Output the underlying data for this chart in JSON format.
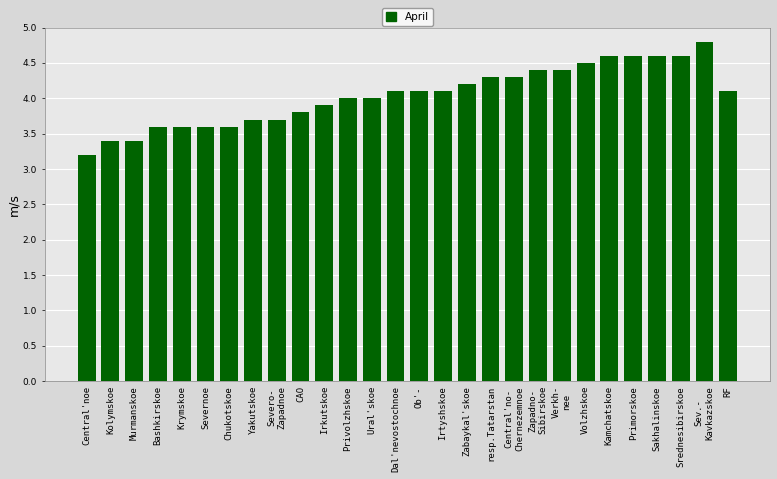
{
  "categories": [
    "Central'noe",
    "Kolymskoe",
    "Murmanskoe",
    "Bashkirskoe",
    "Krymskoe",
    "Severnoe",
    "Chukotskoe",
    "Yakutskoe",
    "Severo-\nZapadnoe",
    "CAO",
    "Irkutskoe",
    "Privolzhskoe",
    "Ural'skoe",
    "Dal'nevostochnoe",
    "Ob'-",
    "Irtyshskoe",
    "Zabaykal'skoe",
    "resp.Tatarstan",
    "Central'no-\nChernezemnoe",
    "Zapadno-\nSibirskoe",
    "Verkh-\nnee",
    "Volzhskoe",
    "Kamchatskoe",
    "Primorskoe",
    "Sakhalinskoe",
    "Srednesibirskoe",
    "Sev.-\nKavkazskoe",
    "RF"
  ],
  "values": [
    3.2,
    3.4,
    3.4,
    3.6,
    3.6,
    3.6,
    3.6,
    3.7,
    3.7,
    3.8,
    3.9,
    4.0,
    4.0,
    4.1,
    4.1,
    4.1,
    4.2,
    4.3,
    4.3,
    4.4,
    4.4,
    4.5,
    4.6,
    4.6,
    4.6,
    4.6,
    4.8,
    4.1
  ],
  "bar_color": "#006400",
  "ylabel": "m/s",
  "ylim": [
    0,
    5
  ],
  "yticks": [
    0,
    0.5,
    1.0,
    1.5,
    2.0,
    2.5,
    3.0,
    3.5,
    4.0,
    4.5,
    5.0
  ],
  "legend_label": "April",
  "legend_color": "#006400",
  "outer_bg": "#d8d8d8",
  "plot_bg": "#e8e8e8",
  "grid_color": "#ffffff",
  "tick_fontsize": 6.5,
  "ylabel_fontsize": 9
}
